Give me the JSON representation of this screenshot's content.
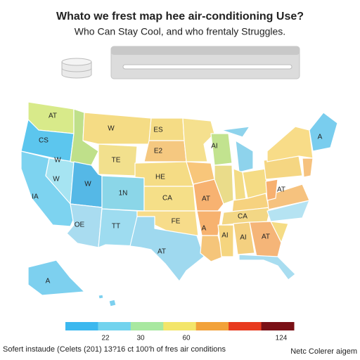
{
  "header": {
    "title": "Whato we frest map hee air-conditioning Use?",
    "subtitle": "Who Can Stay Cool, and who frentaly Struggles."
  },
  "map": {
    "states": [
      {
        "label": "AT"
      },
      {
        "label": "CS"
      },
      {
        "label": "W"
      },
      {
        "label": "W"
      },
      {
        "label": "TE"
      },
      {
        "label": "W"
      },
      {
        "label": "W"
      },
      {
        "label": "IA"
      },
      {
        "label": "1N"
      },
      {
        "label": "OE"
      },
      {
        "label": "TT"
      },
      {
        "label": "AT"
      },
      {
        "label": "ES"
      },
      {
        "label": "E2"
      },
      {
        "label": "HE"
      },
      {
        "label": "CA"
      },
      {
        "label": "FE"
      },
      {
        "label": "AT"
      },
      {
        "label": "A"
      },
      {
        "label": "AI"
      },
      {
        "label": "AI"
      },
      {
        "label": "AT"
      },
      {
        "label": "AI"
      },
      {
        "label": "CA"
      },
      {
        "label": "A"
      },
      {
        "label": "AT"
      },
      {
        "label": "A"
      }
    ]
  },
  "legend": {
    "colors": [
      "#3bb8ef",
      "#72d3ee",
      "#a8e8a0",
      "#f3e56a",
      "#f2a23a",
      "#e83a1e",
      "#7a1016"
    ],
    "ticks": [
      22,
      30,
      60,
      124
    ]
  },
  "footer": {
    "source": "Sofert instaude (Celets (201) 13?16 ct 100'h of fres air conditions",
    "credit": "Netc Colerer aigem"
  }
}
